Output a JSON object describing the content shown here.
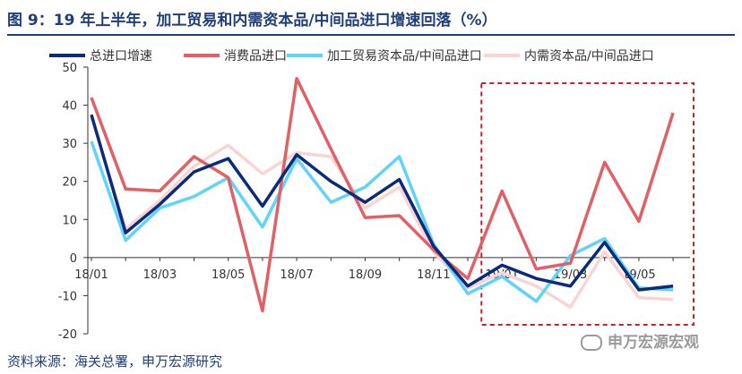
{
  "header": {
    "title": "图 9：19 年上半年，加工贸易和内需资本品/中间品进口增速回落（%）"
  },
  "footer": {
    "source": "资料来源：海关总署，申万宏源研究",
    "watermark": "申万宏源宏观"
  },
  "chart_data": {
    "type": "line",
    "x": [
      "18/01",
      "18/02",
      "18/03",
      "18/04",
      "18/05",
      "18/06",
      "18/07",
      "18/08",
      "18/09",
      "18/10",
      "18/11",
      "18/12",
      "19/01",
      "19/02",
      "19/03",
      "19/04",
      "19/05",
      "19/06"
    ],
    "x_tick_labels": [
      "18/01",
      "18/03",
      "18/05",
      "18/07",
      "18/09",
      "18/11",
      "19/01",
      "19/03",
      "19/05"
    ],
    "ylim": [
      -20,
      50
    ],
    "y_ticks": [
      -20,
      -10,
      0,
      10,
      20,
      30,
      40,
      50
    ],
    "grid": false,
    "legend_position": "top",
    "highlight_region": {
      "x_start": "19/01",
      "x_end": "19/06",
      "style": "dashed",
      "color": "#c0232b"
    },
    "series": [
      {
        "name": "总进口增速",
        "color": "#0a2a7a",
        "values": [
          37.5,
          6.5,
          14.0,
          22.5,
          26.0,
          13.5,
          27.0,
          20.0,
          14.5,
          20.5,
          3.0,
          -7.5,
          -2.0,
          -5.5,
          -7.5,
          4.0,
          -8.5,
          -7.5
        ]
      },
      {
        "name": "消费品进口",
        "color": "#e06066",
        "values": [
          42.0,
          18.0,
          17.5,
          26.5,
          21.0,
          -14.0,
          47.0,
          28.5,
          10.5,
          11.0,
          2.0,
          -5.5,
          17.5,
          -3.0,
          -1.5,
          25.0,
          9.5,
          38.0
        ]
      },
      {
        "name": "加工贸易资本品/中间品进口",
        "color": "#5fd3f8",
        "values": [
          30.5,
          4.5,
          13.0,
          16.0,
          21.0,
          8.0,
          26.0,
          14.5,
          18.5,
          26.5,
          3.5,
          -9.5,
          -5.0,
          -11.5,
          0.5,
          5.0,
          -8.0,
          -8.5
        ]
      },
      {
        "name": "内需资本品/中间品进口",
        "color": "#f8d4d4",
        "values": [
          37.0,
          7.5,
          15.0,
          24.0,
          29.5,
          22.0,
          27.5,
          26.5,
          13.0,
          18.5,
          1.5,
          -8.0,
          -4.0,
          -7.5,
          -13.0,
          1.5,
          -10.5,
          -11.0
        ]
      }
    ]
  }
}
